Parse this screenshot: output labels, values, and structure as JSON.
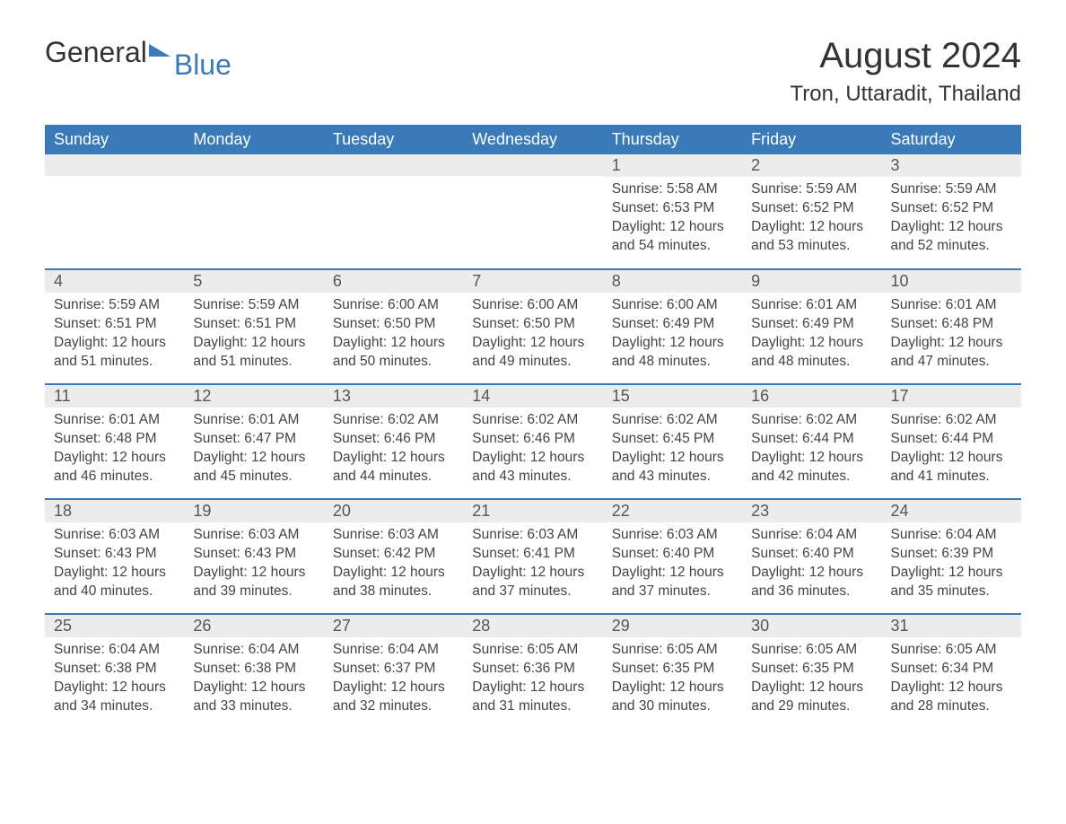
{
  "logo": {
    "part1": "General",
    "part2": "Blue"
  },
  "title": "August 2024",
  "location": "Tron, Uttaradit, Thailand",
  "colors": {
    "header_bg": "#3a7ab8",
    "header_text": "#ffffff",
    "daynum_bg": "#ececec",
    "row_border": "#3a7ab8",
    "body_text": "#444444",
    "page_bg": "#ffffff"
  },
  "typography": {
    "title_fontsize": 40,
    "location_fontsize": 24,
    "weekday_fontsize": 18,
    "daynum_fontsize": 18,
    "body_fontsize": 15.5
  },
  "layout": {
    "columns": 7,
    "rows": 5,
    "first_day_column_index": 4
  },
  "weekdays": [
    "Sunday",
    "Monday",
    "Tuesday",
    "Wednesday",
    "Thursday",
    "Friday",
    "Saturday"
  ],
  "days": [
    {
      "n": 1,
      "sunrise": "5:58 AM",
      "sunset": "6:53 PM",
      "daylight": "12 hours and 54 minutes."
    },
    {
      "n": 2,
      "sunrise": "5:59 AM",
      "sunset": "6:52 PM",
      "daylight": "12 hours and 53 minutes."
    },
    {
      "n": 3,
      "sunrise": "5:59 AM",
      "sunset": "6:52 PM",
      "daylight": "12 hours and 52 minutes."
    },
    {
      "n": 4,
      "sunrise": "5:59 AM",
      "sunset": "6:51 PM",
      "daylight": "12 hours and 51 minutes."
    },
    {
      "n": 5,
      "sunrise": "5:59 AM",
      "sunset": "6:51 PM",
      "daylight": "12 hours and 51 minutes."
    },
    {
      "n": 6,
      "sunrise": "6:00 AM",
      "sunset": "6:50 PM",
      "daylight": "12 hours and 50 minutes."
    },
    {
      "n": 7,
      "sunrise": "6:00 AM",
      "sunset": "6:50 PM",
      "daylight": "12 hours and 49 minutes."
    },
    {
      "n": 8,
      "sunrise": "6:00 AM",
      "sunset": "6:49 PM",
      "daylight": "12 hours and 48 minutes."
    },
    {
      "n": 9,
      "sunrise": "6:01 AM",
      "sunset": "6:49 PM",
      "daylight": "12 hours and 48 minutes."
    },
    {
      "n": 10,
      "sunrise": "6:01 AM",
      "sunset": "6:48 PM",
      "daylight": "12 hours and 47 minutes."
    },
    {
      "n": 11,
      "sunrise": "6:01 AM",
      "sunset": "6:48 PM",
      "daylight": "12 hours and 46 minutes."
    },
    {
      "n": 12,
      "sunrise": "6:01 AM",
      "sunset": "6:47 PM",
      "daylight": "12 hours and 45 minutes."
    },
    {
      "n": 13,
      "sunrise": "6:02 AM",
      "sunset": "6:46 PM",
      "daylight": "12 hours and 44 minutes."
    },
    {
      "n": 14,
      "sunrise": "6:02 AM",
      "sunset": "6:46 PM",
      "daylight": "12 hours and 43 minutes."
    },
    {
      "n": 15,
      "sunrise": "6:02 AM",
      "sunset": "6:45 PM",
      "daylight": "12 hours and 43 minutes."
    },
    {
      "n": 16,
      "sunrise": "6:02 AM",
      "sunset": "6:44 PM",
      "daylight": "12 hours and 42 minutes."
    },
    {
      "n": 17,
      "sunrise": "6:02 AM",
      "sunset": "6:44 PM",
      "daylight": "12 hours and 41 minutes."
    },
    {
      "n": 18,
      "sunrise": "6:03 AM",
      "sunset": "6:43 PM",
      "daylight": "12 hours and 40 minutes."
    },
    {
      "n": 19,
      "sunrise": "6:03 AM",
      "sunset": "6:43 PM",
      "daylight": "12 hours and 39 minutes."
    },
    {
      "n": 20,
      "sunrise": "6:03 AM",
      "sunset": "6:42 PM",
      "daylight": "12 hours and 38 minutes."
    },
    {
      "n": 21,
      "sunrise": "6:03 AM",
      "sunset": "6:41 PM",
      "daylight": "12 hours and 37 minutes."
    },
    {
      "n": 22,
      "sunrise": "6:03 AM",
      "sunset": "6:40 PM",
      "daylight": "12 hours and 37 minutes."
    },
    {
      "n": 23,
      "sunrise": "6:04 AM",
      "sunset": "6:40 PM",
      "daylight": "12 hours and 36 minutes."
    },
    {
      "n": 24,
      "sunrise": "6:04 AM",
      "sunset": "6:39 PM",
      "daylight": "12 hours and 35 minutes."
    },
    {
      "n": 25,
      "sunrise": "6:04 AM",
      "sunset": "6:38 PM",
      "daylight": "12 hours and 34 minutes."
    },
    {
      "n": 26,
      "sunrise": "6:04 AM",
      "sunset": "6:38 PM",
      "daylight": "12 hours and 33 minutes."
    },
    {
      "n": 27,
      "sunrise": "6:04 AM",
      "sunset": "6:37 PM",
      "daylight": "12 hours and 32 minutes."
    },
    {
      "n": 28,
      "sunrise": "6:05 AM",
      "sunset": "6:36 PM",
      "daylight": "12 hours and 31 minutes."
    },
    {
      "n": 29,
      "sunrise": "6:05 AM",
      "sunset": "6:35 PM",
      "daylight": "12 hours and 30 minutes."
    },
    {
      "n": 30,
      "sunrise": "6:05 AM",
      "sunset": "6:35 PM",
      "daylight": "12 hours and 29 minutes."
    },
    {
      "n": 31,
      "sunrise": "6:05 AM",
      "sunset": "6:34 PM",
      "daylight": "12 hours and 28 minutes."
    }
  ],
  "labels": {
    "sunrise": "Sunrise:",
    "sunset": "Sunset:",
    "daylight": "Daylight:"
  }
}
